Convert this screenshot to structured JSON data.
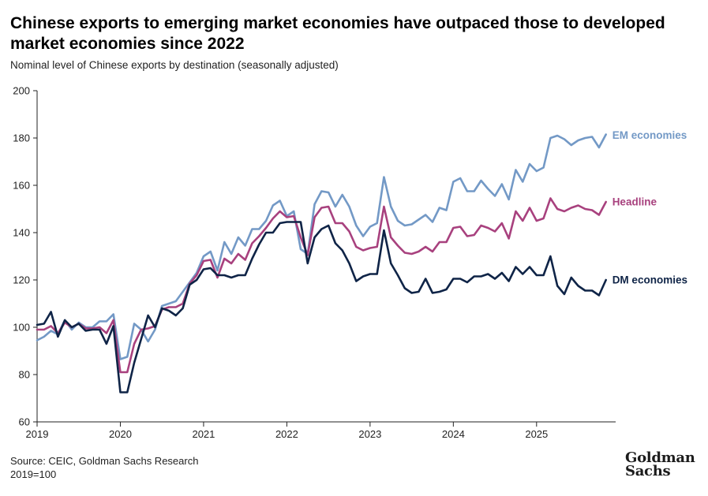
{
  "header": {
    "title": "Chinese exports to emerging market economies have outpaced those to developed market economies since 2022",
    "subtitle": "Nominal level of Chinese exports by destination (seasonally adjusted)"
  },
  "footer": {
    "source": "Source: CEIC, Goldman Sachs Research",
    "note": "2019=100"
  },
  "logo": {
    "line1": "Goldman",
    "line2": "Sachs"
  },
  "chart_data": {
    "type": "line",
    "title": "Chinese exports to emerging market economies have outpaced those to developed market economies since 2022",
    "subtitle": "Nominal level of Chinese exports by destination (seasonally adjusted)",
    "xlabel": "",
    "ylabel": "",
    "x_start": 2019.0,
    "x_step_months": 1,
    "xlim": [
      2019.0,
      2025.95
    ],
    "ylim": [
      60,
      200
    ],
    "yticks": [
      60,
      80,
      100,
      120,
      140,
      160,
      180,
      200
    ],
    "xticks": [
      2019,
      2020,
      2021,
      2022,
      2023,
      2024,
      2025
    ],
    "xtick_labels": [
      "2019",
      "2020",
      "2021",
      "2022",
      "2023",
      "2024",
      "2025"
    ],
    "grid": false,
    "legend": "inline labels at right end of lines",
    "series": [
      {
        "name": "EM economies",
        "color": "#7399c6",
        "values": [
          94.5,
          96,
          98.5,
          97,
          103,
          99,
          102,
          100,
          100,
          102.5,
          102.5,
          105.5,
          86.5,
          87.5,
          101.5,
          99,
          94,
          99,
          109,
          110,
          111,
          115,
          119,
          123,
          130,
          132,
          124,
          136,
          131,
          138,
          134.5,
          141.5,
          141.5,
          145,
          151.5,
          153.5,
          147,
          149,
          133,
          131,
          152,
          157.5,
          157,
          151,
          156,
          151,
          143,
          138.5,
          142.5,
          144,
          163.5,
          151,
          145,
          143,
          143.5,
          145.5,
          147.5,
          144.5,
          150.5,
          149.5,
          161.5,
          163,
          157.5,
          157.5,
          162,
          158.5,
          155.5,
          160.5,
          154,
          166.5,
          161.5,
          169,
          166,
          167.5,
          180,
          181,
          179.5,
          177,
          179,
          180,
          180.5,
          176,
          181.5
        ]
      },
      {
        "name": "Headline",
        "color": "#a8417e",
        "values": [
          99,
          99,
          100.5,
          97.5,
          102,
          100,
          101.5,
          99.5,
          99.5,
          100,
          97.5,
          103,
          81,
          81,
          93,
          99,
          99.5,
          100.5,
          107.5,
          108.5,
          108.5,
          110,
          118.5,
          122,
          128,
          128.5,
          121,
          129,
          127,
          131,
          128.5,
          135.5,
          138.5,
          142,
          146,
          149,
          146.5,
          147,
          138,
          130.5,
          146.5,
          150.5,
          151,
          144,
          144,
          140.5,
          134,
          132.5,
          133.5,
          134,
          151,
          138,
          134.5,
          131.5,
          131,
          132,
          134,
          132,
          136,
          136,
          142,
          142.5,
          138.5,
          139,
          143,
          142,
          140.5,
          144,
          137.5,
          149,
          145,
          150.5,
          145,
          146,
          154.5,
          150,
          149,
          150.5,
          151.5,
          150,
          149.5,
          147.5,
          153
        ]
      },
      {
        "name": "DM economies",
        "color": "#0f2447",
        "values": [
          101,
          101.5,
          106.5,
          96,
          103,
          100,
          101.5,
          98.5,
          99,
          99,
          93,
          100.5,
          72.5,
          72.5,
          85,
          95,
          105,
          100,
          108,
          107,
          105,
          108,
          118,
          120,
          124.5,
          125,
          122,
          122,
          121,
          122,
          122,
          129,
          135,
          140,
          140,
          144,
          144.5,
          144.5,
          144.5,
          127,
          138,
          141.5,
          143,
          135.5,
          132.5,
          127,
          119.5,
          121.5,
          122.5,
          122.5,
          141,
          127,
          122,
          116.5,
          114.5,
          115,
          120.5,
          114.5,
          115,
          116,
          120.5,
          120.5,
          119,
          121.5,
          121.5,
          122.5,
          120.5,
          123,
          119.5,
          125.5,
          122.5,
          125.5,
          122,
          122,
          130,
          117.5,
          114,
          121,
          117.5,
          115.5,
          115.5,
          113.5,
          120
        ]
      }
    ],
    "series_labels": [
      "EM economies",
      "Headline",
      "DM economies"
    ]
  }
}
